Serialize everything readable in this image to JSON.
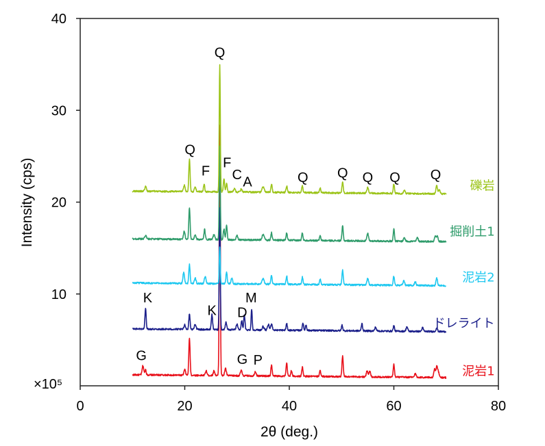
{
  "chart_data": {
    "type": "line",
    "title": "",
    "xlabel": "2θ (deg.)",
    "ylabel": "Intensity (cps)",
    "scale_note": "×10⁵",
    "xlim": [
      0,
      80
    ],
    "ylim": [
      0,
      40
    ],
    "xticks": [
      0,
      20,
      40,
      60,
      80
    ],
    "xtick_labels": [
      "0",
      "20",
      "40",
      "60",
      "80"
    ],
    "yticks": [
      10,
      20,
      30,
      40
    ],
    "ytick_labels": [
      "10",
      "20",
      "30",
      "40"
    ],
    "grid": false,
    "legend": "none",
    "series": [
      {
        "name": "泥岩1",
        "color": "#e8101a",
        "baseline": 1.2,
        "peaks": [
          [
            12.0,
            1.0,
            0.15
          ],
          [
            12.5,
            0.6,
            0.12
          ],
          [
            20.0,
            0.6,
            0.15
          ],
          [
            20.9,
            4.1,
            0.12
          ],
          [
            24.1,
            0.5,
            0.15
          ],
          [
            25.6,
            0.5,
            0.15
          ],
          [
            26.7,
            27.3,
            0.1
          ],
          [
            27.8,
            0.8,
            0.15
          ],
          [
            30.8,
            0.6,
            0.15
          ],
          [
            33.5,
            0.5,
            0.15
          ],
          [
            36.6,
            1.2,
            0.12
          ],
          [
            39.5,
            1.4,
            0.12
          ],
          [
            40.4,
            0.6,
            0.12
          ],
          [
            42.5,
            1.0,
            0.12
          ],
          [
            45.9,
            0.7,
            0.12
          ],
          [
            50.2,
            2.3,
            0.12
          ],
          [
            54.9,
            0.7,
            0.15
          ],
          [
            55.4,
            0.6,
            0.15
          ],
          [
            60.0,
            1.4,
            0.12
          ],
          [
            64.1,
            0.4,
            0.15
          ],
          [
            67.8,
            0.9,
            0.15
          ],
          [
            68.2,
            1.1,
            0.15
          ],
          [
            68.5,
            0.6,
            0.15
          ]
        ]
      },
      {
        "name": "ドレライト",
        "color": "#1b1f8a",
        "baseline": 6.2,
        "peaks": [
          [
            12.5,
            2.2,
            0.12
          ],
          [
            20.0,
            0.5,
            0.15
          ],
          [
            20.9,
            1.7,
            0.12
          ],
          [
            22.0,
            0.6,
            0.15
          ],
          [
            25.2,
            1.7,
            0.12
          ],
          [
            26.7,
            13.3,
            0.1
          ],
          [
            27.9,
            0.8,
            0.15
          ],
          [
            30.0,
            0.6,
            0.15
          ],
          [
            30.9,
            1.0,
            0.12
          ],
          [
            31.4,
            1.6,
            0.12
          ],
          [
            32.8,
            2.3,
            0.1
          ],
          [
            35.0,
            0.4,
            0.15
          ],
          [
            36.0,
            0.6,
            0.15
          ],
          [
            36.6,
            0.7,
            0.15
          ],
          [
            39.5,
            0.7,
            0.12
          ],
          [
            42.6,
            0.8,
            0.12
          ],
          [
            43.2,
            0.6,
            0.12
          ],
          [
            50.1,
            0.6,
            0.12
          ],
          [
            53.9,
            0.8,
            0.12
          ],
          [
            56.5,
            0.4,
            0.15
          ],
          [
            60.0,
            0.6,
            0.12
          ],
          [
            62.5,
            0.5,
            0.15
          ],
          [
            65.5,
            0.4,
            0.15
          ],
          [
            68.2,
            0.4,
            0.15
          ]
        ]
      },
      {
        "name": "泥岩2",
        "color": "#1ec8f0",
        "baseline": 11.2,
        "peaks": [
          [
            19.8,
            1.2,
            0.15
          ],
          [
            20.9,
            2.1,
            0.12
          ],
          [
            22.0,
            0.6,
            0.15
          ],
          [
            23.9,
            0.8,
            0.15
          ],
          [
            26.7,
            4.0,
            0.1
          ],
          [
            28.0,
            1.3,
            0.12
          ],
          [
            29.0,
            0.6,
            0.15
          ],
          [
            35.0,
            0.6,
            0.2
          ],
          [
            36.6,
            1.0,
            0.12
          ],
          [
            39.5,
            0.9,
            0.12
          ],
          [
            42.5,
            0.8,
            0.12
          ],
          [
            45.9,
            0.6,
            0.12
          ],
          [
            50.2,
            1.6,
            0.12
          ],
          [
            55.0,
            0.7,
            0.15
          ],
          [
            60.0,
            1.0,
            0.12
          ],
          [
            61.9,
            0.5,
            0.15
          ],
          [
            64.1,
            0.4,
            0.15
          ],
          [
            68.2,
            0.8,
            0.15
          ]
        ]
      },
      {
        "name": "掘削土1",
        "color": "#2e9b6a",
        "baseline": 16.0,
        "peaks": [
          [
            12.5,
            0.4,
            0.15
          ],
          [
            19.9,
            0.9,
            0.15
          ],
          [
            20.9,
            3.5,
            0.12
          ],
          [
            22.0,
            0.5,
            0.15
          ],
          [
            23.8,
            1.1,
            0.12
          ],
          [
            25.6,
            0.6,
            0.15
          ],
          [
            26.7,
            10.2,
            0.1
          ],
          [
            27.5,
            1.2,
            0.12
          ],
          [
            28.0,
            1.6,
            0.12
          ],
          [
            30.0,
            0.5,
            0.15
          ],
          [
            35.0,
            0.6,
            0.2
          ],
          [
            36.6,
            0.8,
            0.12
          ],
          [
            39.5,
            0.8,
            0.12
          ],
          [
            42.5,
            0.8,
            0.12
          ],
          [
            45.9,
            0.5,
            0.12
          ],
          [
            50.2,
            1.6,
            0.12
          ],
          [
            55.0,
            0.8,
            0.15
          ],
          [
            60.0,
            1.3,
            0.12
          ],
          [
            62.0,
            0.4,
            0.15
          ],
          [
            64.5,
            0.4,
            0.15
          ],
          [
            67.9,
            0.6,
            0.15
          ],
          [
            68.3,
            0.6,
            0.15
          ]
        ]
      },
      {
        "name": "礫岩",
        "color": "#9cc41a",
        "baseline": 21.2,
        "peaks": [
          [
            12.5,
            0.5,
            0.15
          ],
          [
            19.9,
            0.7,
            0.15
          ],
          [
            20.9,
            3.6,
            0.12
          ],
          [
            22.0,
            0.5,
            0.15
          ],
          [
            23.7,
            0.8,
            0.12
          ],
          [
            26.7,
            13.9,
            0.1
          ],
          [
            27.5,
            1.4,
            0.12
          ],
          [
            28.0,
            0.9,
            0.12
          ],
          [
            29.5,
            0.4,
            0.15
          ],
          [
            30.8,
            0.3,
            0.15
          ],
          [
            35.0,
            0.6,
            0.2
          ],
          [
            36.6,
            0.9,
            0.12
          ],
          [
            39.5,
            0.7,
            0.12
          ],
          [
            42.5,
            0.7,
            0.12
          ],
          [
            45.9,
            0.5,
            0.12
          ],
          [
            50.2,
            1.2,
            0.12
          ],
          [
            55.0,
            0.6,
            0.15
          ],
          [
            60.0,
            1.0,
            0.12
          ],
          [
            62.0,
            0.4,
            0.15
          ],
          [
            68.2,
            0.9,
            0.15
          ],
          [
            68.7,
            0.5,
            0.15
          ]
        ]
      }
    ],
    "peak_labels": [
      {
        "text": "Q",
        "x": 26.7,
        "y": 35.8
      },
      {
        "text": "Q",
        "x": 21.0,
        "y": 25.2
      },
      {
        "text": "F",
        "x": 24.0,
        "y": 22.9
      },
      {
        "text": "F",
        "x": 28.1,
        "y": 23.8
      },
      {
        "text": "C",
        "x": 30.0,
        "y": 22.5
      },
      {
        "text": "A",
        "x": 32.0,
        "y": 21.7
      },
      {
        "text": "Q",
        "x": 42.6,
        "y": 22.2
      },
      {
        "text": "Q",
        "x": 50.2,
        "y": 22.7
      },
      {
        "text": "Q",
        "x": 55.0,
        "y": 22.2
      },
      {
        "text": "Q",
        "x": 60.2,
        "y": 22.2
      },
      {
        "text": "Q",
        "x": 68.0,
        "y": 22.5
      },
      {
        "text": "K",
        "x": 12.9,
        "y": 9.1
      },
      {
        "text": "K",
        "x": 25.2,
        "y": 7.7
      },
      {
        "text": "M",
        "x": 32.7,
        "y": 9.1
      },
      {
        "text": "D",
        "x": 31.0,
        "y": 7.5
      },
      {
        "text": "G",
        "x": 11.7,
        "y": 2.8
      },
      {
        "text": "G",
        "x": 31.0,
        "y": 2.4
      },
      {
        "text": "P",
        "x": 34.0,
        "y": 2.3
      }
    ],
    "series_label_positions": {
      "礫岩": 21.8,
      "掘削土1": 16.8,
      "泥岩2": 11.8,
      "ドレライト": 6.8,
      "泥岩1": 1.6
    }
  }
}
